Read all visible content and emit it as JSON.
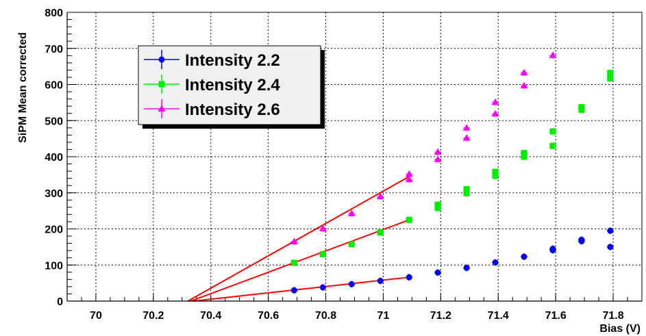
{
  "chart_data": {
    "type": "scatter",
    "title": "",
    "xlabel": "Bias (V)",
    "ylabel": "SiPM Mean corrected",
    "xlim": [
      69.9,
      71.9
    ],
    "ylim": [
      0,
      800
    ],
    "xticks": [
      70,
      70.2,
      70.4,
      70.6,
      70.8,
      71,
      71.2,
      71.4,
      71.6,
      71.8
    ],
    "xtick_labels": [
      "70",
      "70.2",
      "70.4",
      "70.6",
      "70.8",
      "71",
      "71.2",
      "71.4",
      "71.6",
      "71.8"
    ],
    "yticks": [
      0,
      100,
      200,
      300,
      400,
      500,
      600,
      700,
      800
    ],
    "ytick_labels": [
      "0",
      "100",
      "200",
      "300",
      "400",
      "500",
      "600",
      "700",
      "800"
    ],
    "grid": true,
    "legend_position": "top-left",
    "series": [
      {
        "name": "Intensity 2.2",
        "color": "#0000ff",
        "marker": "circle",
        "x": [
          70.69,
          70.79,
          70.89,
          70.99,
          71.09,
          71.19,
          71.29,
          71.39,
          71.49,
          71.59,
          71.59,
          71.69,
          71.69,
          71.79,
          71.79
        ],
        "y": [
          30,
          38,
          47,
          56,
          66,
          79,
          92,
          107,
          123,
          141,
          145,
          166,
          170,
          150,
          195
        ]
      },
      {
        "name": "Intensity 2.4",
        "color": "#00ee00",
        "marker": "square",
        "x": [
          70.69,
          70.79,
          70.89,
          70.99,
          71.09,
          71.19,
          71.19,
          71.29,
          71.29,
          71.39,
          71.39,
          71.49,
          71.49,
          71.59,
          71.59,
          71.69,
          71.69,
          71.79,
          71.79
        ],
        "y": [
          106,
          130,
          158,
          190,
          225,
          258,
          267,
          299,
          310,
          347,
          358,
          400,
          410,
          430,
          470,
          530,
          537,
          617,
          632
        ]
      },
      {
        "name": "Intensity 2.6",
        "color": "#ff00ff",
        "marker": "triangle",
        "x": [
          70.69,
          70.79,
          70.89,
          70.99,
          71.09,
          71.09,
          71.19,
          71.19,
          71.29,
          71.29,
          71.39,
          71.39,
          71.49,
          71.49,
          71.59
        ],
        "y": [
          165,
          201,
          243,
          290,
          337,
          352,
          393,
          413,
          452,
          480,
          519,
          551,
          597,
          633,
          681
        ]
      }
    ],
    "fits": [
      {
        "color": "#ff0000",
        "x": [
          70.34,
          71.09
        ],
        "y": [
          0,
          66
        ]
      },
      {
        "color": "#ff0000",
        "x": [
          70.33,
          71.09
        ],
        "y": [
          0,
          225
        ]
      },
      {
        "color": "#ff0000",
        "x": [
          70.32,
          71.09
        ],
        "y": [
          0,
          345
        ]
      }
    ]
  }
}
